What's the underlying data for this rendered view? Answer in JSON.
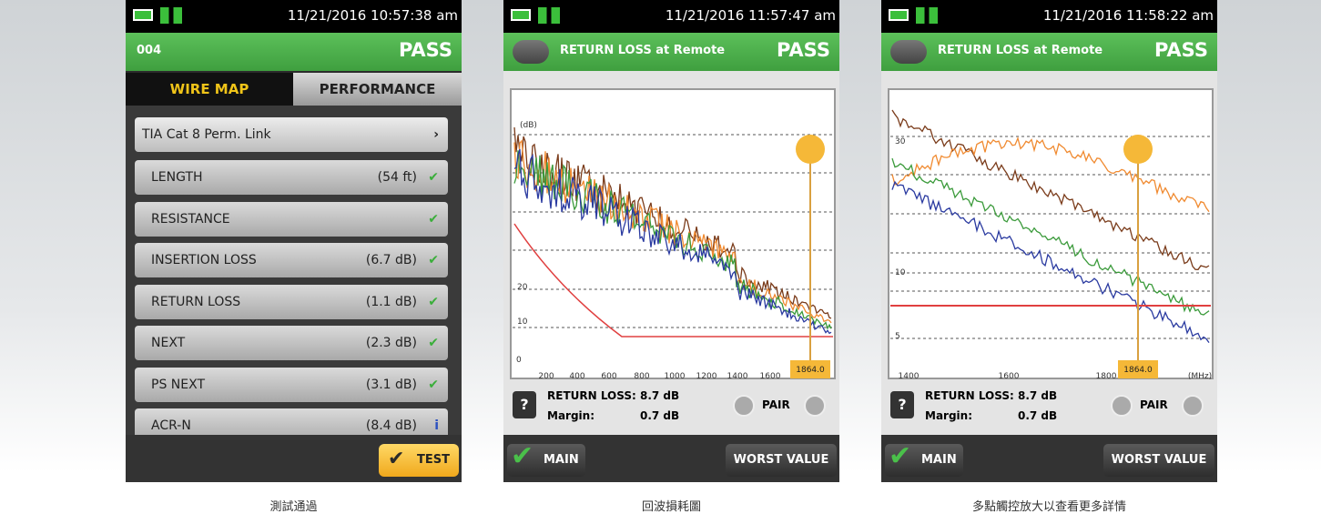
{
  "screens": [
    {
      "status_time": "11/21/2016 10:57:38 am",
      "header_label": "004",
      "result": "PASS",
      "tabs": [
        "WIRE MAP",
        "PERFORMANCE"
      ],
      "limit": "TIA Cat 8 Perm. Link",
      "tests": [
        {
          "name": "LENGTH",
          "value": "(54 ft)"
        },
        {
          "name": "RESISTANCE"
        },
        {
          "name": "INSERTION LOSS",
          "value": "(6.7 dB)"
        },
        {
          "name": "RETURN LOSS",
          "value": "(1.1 dB)"
        },
        {
          "name": "NEXT",
          "value": "(2.3 dB)"
        },
        {
          "name": "PS NEXT",
          "value": "(3.1 dB)"
        },
        {
          "name": "ACR-N",
          "value": "(8.4 dB)"
        }
      ],
      "button": "TEST",
      "caption": "測試通過"
    },
    {
      "status_time": "11/21/2016 11:57:47 am",
      "title": "RETURN LOSS at Remote",
      "result": "PASS",
      "y_labels": [
        "(dB)",
        "20",
        "10",
        "0"
      ],
      "x_labels": [
        "200",
        "400",
        "600",
        "800",
        "1000",
        "1200",
        "1400",
        "1600"
      ],
      "cursor": "1864.0",
      "readout_label": "RETURN LOSS:",
      "readout_value": "8.7 dB",
      "margin_label": "Margin:",
      "margin_value": "0.7 dB",
      "pair": "PAIR",
      "buttons": [
        "MAIN",
        "WORST VALUE"
      ],
      "caption": "回波損耗圖"
    },
    {
      "status_time": "11/21/2016 11:58:22 am",
      "title": "RETURN LOSS at Remote",
      "result": "PASS",
      "y_labels": [
        "30",
        "10",
        "5"
      ],
      "x_labels": [
        "1400",
        "1600",
        "1800",
        "(MHz)"
      ],
      "cursor": "1864.0",
      "readout_label": "RETURN LOSS:",
      "readout_value": "8.7 dB",
      "margin_label": "Margin:",
      "margin_value": "0.7 dB",
      "pair": "PAIR",
      "buttons": [
        "MAIN",
        "WORST VALUE"
      ],
      "caption": "多點觸控放大以查看更多詳情"
    }
  ]
}
